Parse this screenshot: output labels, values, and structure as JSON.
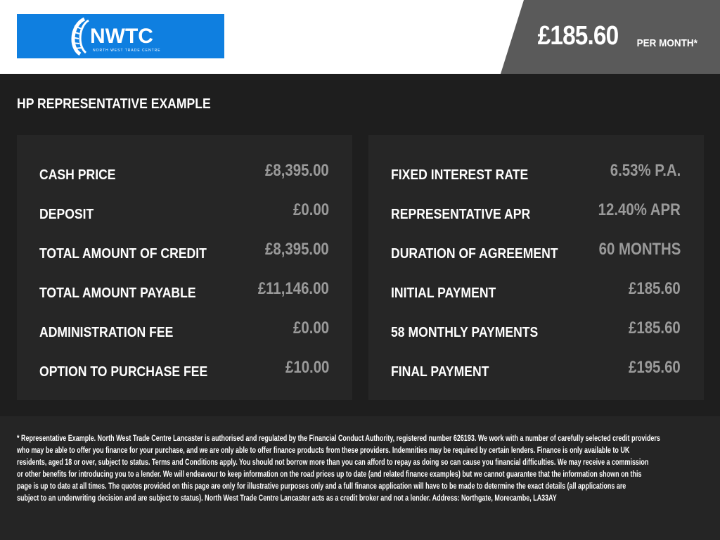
{
  "header": {
    "logo_text": "NWTC",
    "logo_subtext": "NORTH WEST TRADE CENTRE",
    "logo_color": "#0f7fe0",
    "monthly_price": "£185.60",
    "per_month_label": "PER MONTH*"
  },
  "section_title": "HP REPRESENTATIVE EXAMPLE",
  "left_panel": [
    {
      "label": "CASH PRICE",
      "value": "£8,395.00"
    },
    {
      "label": "DEPOSIT",
      "value": "£0.00"
    },
    {
      "label": "TOTAL AMOUNT OF CREDIT",
      "value": "£8,395.00"
    },
    {
      "label": "TOTAL AMOUNT PAYABLE",
      "value": "£11,146.00"
    },
    {
      "label": "ADMINISTRATION FEE",
      "value": "£0.00"
    },
    {
      "label": "OPTION TO PURCHASE FEE",
      "value": "£10.00"
    }
  ],
  "right_panel": [
    {
      "label": "FIXED INTEREST RATE",
      "value": "6.53% P.A."
    },
    {
      "label": "REPRESENTATIVE APR",
      "value": "12.40% APR"
    },
    {
      "label": "DURATION OF AGREEMENT",
      "value": "60 MONTHS"
    },
    {
      "label": "INITIAL PAYMENT",
      "value": "£185.60"
    },
    {
      "label": "58 MONTHLY PAYMENTS",
      "value": "£185.60"
    },
    {
      "label": "FINAL PAYMENT",
      "value": "£195.60"
    }
  ],
  "disclaimer_lines": [
    "* Representative Example. North West Trade Centre Lancaster is authorised and regulated by the Financial Conduct Authority, registered number 626193. We work with a number of carefully selected credit providers",
    "who may be able to offer you finance for your purchase, and we are only able to offer finance products from these providers. Indemnities may be required by certain lenders. Finance is only available to UK",
    "residents, aged 18 or over, subject to status. Terms and Conditions apply. You should not borrow more than you can afford to repay as doing so can cause you financial difficulties. We may receive a commission",
    "or other benefits for introducing you to a lender. We will endeavour to keep information on the road prices up to date (and related finance examples) but we cannot guarantee that the information shown on this",
    "page is up to date at all times. The quotes provided on this page are only for illustrative purposes only and a full finance application will have to be made to determine the exact details (all applications are",
    "subject to an underwriting decision and are subject to status). North West Trade Centre Lancaster acts as a credit broker and not a lender. Address: Northgate, Morecambe, LA33AY"
  ]
}
